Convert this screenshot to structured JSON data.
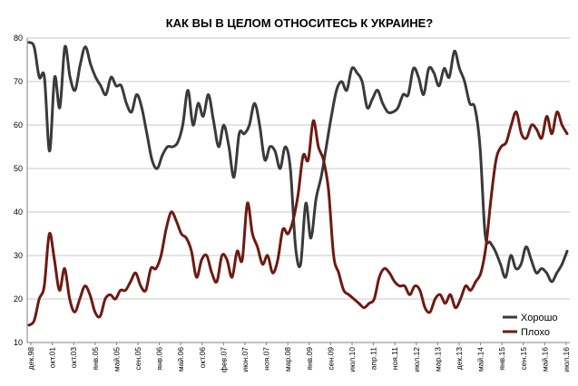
{
  "chart_data": {
    "type": "line",
    "title": "КАК ВЫ В ЦЕЛОМ ОТНОСИТЕСЬ К УКРАИНЕ?",
    "xlabel": "",
    "ylabel": "",
    "ylim": [
      10,
      80
    ],
    "yticks": [
      10,
      20,
      30,
      40,
      50,
      60,
      70,
      80
    ],
    "grid": true,
    "legend": "bottom-right",
    "x_tick_labels": [
      "дек.98",
      "окт.01",
      "окт.03",
      "янв.05",
      "май.05",
      "сен.05",
      "янв.06",
      "май.06",
      "окт.06",
      "фев.07",
      "июн.07",
      "ноя.07",
      "мар.08",
      "янв.09",
      "сен.09",
      "июл.10",
      "апр.11",
      "ноя.11",
      "июл.12",
      "мар.13",
      "дек.13",
      "май.14",
      "янв.15",
      "сен.15",
      "май.16",
      "июл.16"
    ],
    "series": [
      {
        "name": "Хорошо",
        "color": "#3a3a3a",
        "values": [
          79,
          78,
          71,
          71,
          54,
          71,
          64,
          78,
          71,
          68,
          74,
          78,
          74,
          71,
          69,
          67,
          71,
          69,
          69,
          65,
          63,
          67,
          64,
          58,
          52,
          50,
          53,
          55,
          55,
          56,
          60,
          68,
          60,
          65,
          62,
          67,
          61,
          55,
          60,
          55,
          48,
          58,
          58,
          60,
          65,
          60,
          52,
          55,
          54,
          50,
          55,
          50,
          32,
          28,
          42,
          34,
          43,
          48,
          55,
          62,
          68,
          70,
          68,
          73,
          72,
          70,
          64,
          66,
          68,
          65,
          63,
          63,
          64,
          67,
          67,
          73,
          71,
          67,
          73,
          72,
          69,
          73,
          71,
          77,
          73,
          70,
          65,
          64,
          55,
          35,
          33,
          31,
          28,
          25,
          30,
          27,
          28,
          32,
          29,
          26,
          27,
          26,
          24,
          26,
          28,
          31
        ]
      },
      {
        "name": "Плохо",
        "color": "#6e1a12",
        "values": [
          14,
          15,
          20,
          23,
          35,
          29,
          22,
          27,
          20,
          17,
          20,
          23,
          21,
          17,
          16,
          20,
          21,
          20,
          22,
          22,
          24,
          26,
          23,
          22,
          27,
          27,
          30,
          36,
          40,
          38,
          35,
          34,
          31,
          25,
          29,
          30,
          26,
          24,
          30,
          29,
          25,
          31,
          29,
          42,
          35,
          32,
          28,
          30,
          26,
          29,
          36,
          35,
          38,
          44,
          53,
          52,
          61,
          55,
          52,
          45,
          30,
          26,
          22,
          21,
          20,
          19,
          18,
          19,
          20,
          25,
          27,
          26,
          24,
          23,
          23,
          21,
          23,
          22,
          18,
          17,
          20,
          21,
          19,
          21,
          18,
          20,
          23,
          22,
          24,
          26,
          32,
          43,
          52,
          55,
          56,
          60,
          63,
          58,
          57,
          60,
          59,
          57,
          62,
          58,
          63,
          60,
          58
        ]
      }
    ]
  }
}
